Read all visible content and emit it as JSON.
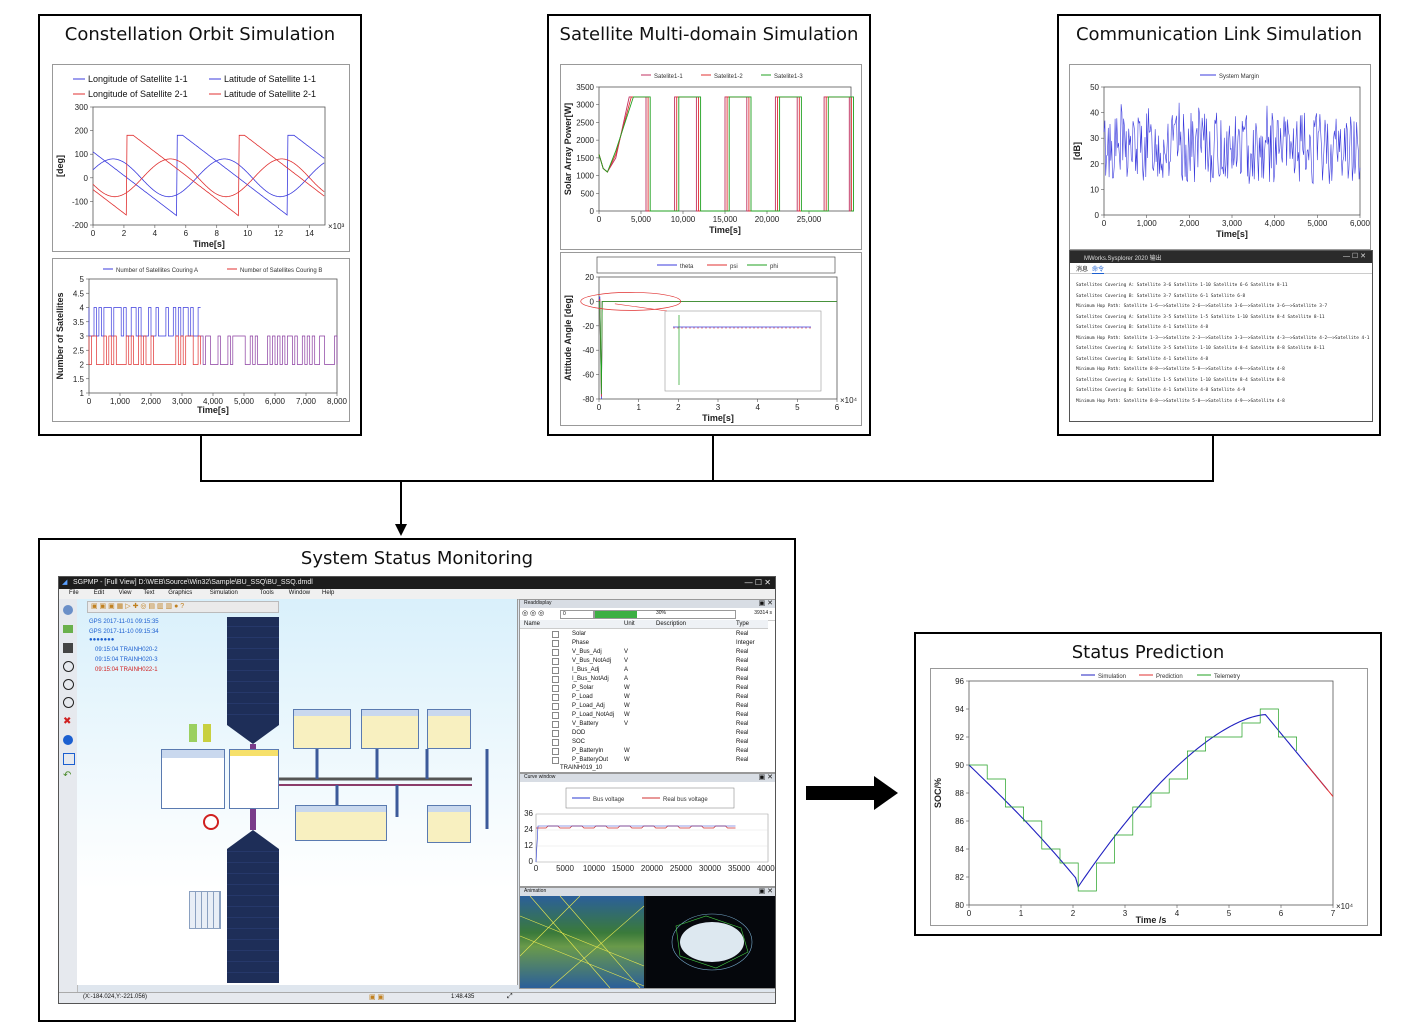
{
  "panels": {
    "orbit": {
      "title": "Constellation Orbit Simulation"
    },
    "multidomain": {
      "title": "Satellite Multi-domain Simulation"
    },
    "comm": {
      "title": "Communication Link Simulation"
    },
    "monitor": {
      "title": "System Status Monitoring"
    },
    "prediction": {
      "title": "Status Prediction"
    }
  },
  "chart_data": [
    {
      "id": "orbit-angles",
      "type": "line",
      "legend": [
        "Longitude of Satellite 1-1",
        "Latitude of Satellite 1-1",
        "Longitude of Satellite 2-1",
        "Latitude of Satellite 2-1"
      ],
      "colors": [
        "#3b3bdd",
        "#3b3bdd",
        "#e03030",
        "#e03030"
      ],
      "ylabel": "[deg]",
      "xlabel": "Time[s]",
      "xscale_note": "×10³",
      "ylim": [
        -200,
        300
      ],
      "yticks": [
        300,
        200,
        100,
        0,
        -100,
        -200
      ],
      "xlim": [
        0,
        15
      ],
      "xticks": [
        0,
        2,
        4,
        6,
        8,
        10,
        12,
        14
      ]
    },
    {
      "id": "coverage",
      "type": "line",
      "legend": [
        "Number of Satellites Couring A",
        "Number of Satellites Couring B"
      ],
      "colors": [
        "#3b3bdd",
        "#e03030"
      ],
      "ylabel": "Number of Satellites",
      "xlabel": "Time[s]",
      "ylim": [
        1,
        5
      ],
      "yticks": [
        5,
        4.5,
        4,
        3.5,
        3,
        2.5,
        2,
        1.5,
        1
      ],
      "xlim": [
        0,
        8000
      ],
      "xticks": [
        "0",
        "1,000",
        "2,000",
        "3,000",
        "4,000",
        "5,000",
        "6,000",
        "7,000",
        "8,000"
      ]
    },
    {
      "id": "solar-power",
      "type": "line",
      "legend": [
        "Satelite1-1",
        "Satelite1-2",
        "Satelite1-3"
      ],
      "colors": [
        "#c03060",
        "#e03030",
        "#20a020"
      ],
      "ylabel": "Solar Array Power[W]",
      "xlabel": "Time[s]",
      "ylim": [
        0,
        3500
      ],
      "yticks": [
        3500,
        3000,
        2500,
        2000,
        1500,
        1000,
        500,
        0
      ],
      "xlim": [
        0,
        30000
      ],
      "xticks": [
        "0",
        "5,000",
        "10,000",
        "15,000",
        "20,000",
        "25,000"
      ]
    },
    {
      "id": "attitude",
      "type": "line",
      "legend": [
        "theta",
        "psi",
        "phi"
      ],
      "colors": [
        "#3b3bdd",
        "#e03030",
        "#20a020"
      ],
      "ylabel": "Attitude Angle [deg]",
      "xlabel": "Time[s]",
      "xscale_note": "×10⁴",
      "ylim": [
        -80,
        20
      ],
      "yticks": [
        20,
        0,
        -20,
        -40,
        -60,
        -80
      ],
      "xlim": [
        0,
        6
      ],
      "xticks": [
        0,
        1,
        2,
        3,
        4,
        5,
        6
      ]
    },
    {
      "id": "system-margin",
      "type": "line",
      "legend": [
        "System Margin"
      ],
      "colors": [
        "#3b3bdd"
      ],
      "ylabel": "[dB]",
      "xlabel": "Time[s]",
      "ylim": [
        0,
        50
      ],
      "yticks": [
        50,
        40,
        30,
        20,
        10,
        0
      ],
      "xlim": [
        0,
        6000
      ],
      "xticks": [
        "0",
        "1,000",
        "2,000",
        "3,000",
        "4,000",
        "5,000",
        "6,000"
      ]
    },
    {
      "id": "soc",
      "type": "line",
      "legend": [
        "Simulation",
        "Prediction",
        "Telemetry"
      ],
      "colors": [
        "#2020c0",
        "#e03030",
        "#20a020"
      ],
      "ylabel": "SOC/%",
      "xlabel": "Time /s",
      "xscale_note": "×10⁴",
      "ylim": [
        80,
        96
      ],
      "yticks": [
        96,
        94,
        92,
        90,
        88,
        86,
        84,
        82,
        80
      ],
      "xlim": [
        0,
        7
      ],
      "xticks": [
        0,
        1,
        2,
        3,
        4,
        5,
        6,
        7
      ]
    }
  ],
  "mworks": {
    "title": "MWorks.Sysplorer 2020 输出",
    "tabs": [
      "消息",
      "命令"
    ],
    "lines": [
      "Satellites Covering A: Satellite 3-6 Satellite 1-10 Satellite 6-6 Satellite 8-11",
      "Satellites Covering B: Satellite 3-7 Satellite 6-1 Satellite 6-8",
      "Minimum Hop Path:  Satellite 1-6——>Satellite 2-6——>Satellite 3-6——>Satellite 3-6——>Satellite 3-7",
      "Satellites Covering A: Satellite 3-5 Satellite 1-5 Satellite 1-10 Satellite 8-4 Satellite 8-11",
      "Satellites Covering B: Satellite 4-1 Satellite 4-8",
      "Minimum Hop Path:  Satellite 1-3——>Satellite 2-3——>Satellite 3-3——>Satellite 4-3——>Satellite 4-2——>Satellite 4-1",
      "Satellites Covering A: Satellite 3-5 Satellite 1-10 Satellite 8-4 Satellite 8-8 Satellite 8-11",
      "Satellites Covering B: Satellite 4-1 Satellite 4-8",
      "Minimum Hop Path:  Satellite 8-8——>Satellite 5-8——>Satellite 4-9——>Satellite 4-8",
      "Satellites Covering A: Satellite 1-5 Satellite 1-10 Satellite 8-4 Satellite 8-8",
      "Satellites Covering B: Satellite 4-1 Satellite 4-8 Satellite 4-9",
      "Minimum Hop Path:  Satellite 8-8——>Satellite 5-8——>Satellite 4-9——>Satellite 4-8"
    ]
  },
  "sgpmp": {
    "title": "SGPMP - [Full View]  D:\\WEB\\Source\\Win32\\Sample\\BU_SSQ\\BU_SSQ.dmdl",
    "menu": [
      "File",
      "Edit",
      "View",
      "Text",
      "Graphics",
      "Simulation",
      "Tools",
      "Window",
      "Help"
    ],
    "times": [
      {
        "label": "GPS",
        "value": "2017-11-01   09:15:35"
      },
      {
        "label": "GPS",
        "value": "2017-11-10   09:15:34"
      }
    ],
    "events": [
      {
        "text": "09:15:04  TRAINH020-2",
        "color": "#1b5fd0"
      },
      {
        "text": "09:15:04  TRAINH020-3",
        "color": "#1b5fd0"
      },
      {
        "text": "09:15:04  TRAINH022-1",
        "color": "#d02020"
      }
    ],
    "readback": {
      "title": "Readdisplay",
      "step_value": "0",
      "progress_text": "30%",
      "progress_fraction": 0.3,
      "time_value": "39314 s",
      "columns": [
        "Name",
        "Unit",
        "Description",
        "Type"
      ],
      "rows": [
        [
          "Solar",
          "",
          "",
          "Real"
        ],
        [
          "Phase",
          "",
          "",
          "Integer"
        ],
        [
          "V_Bus_Adj",
          "V",
          "",
          "Real"
        ],
        [
          "V_Bus_NotAdj",
          "V",
          "",
          "Real"
        ],
        [
          "I_Bus_Adj",
          "A",
          "",
          "Real"
        ],
        [
          "I_Bus_NotAdj",
          "A",
          "",
          "Real"
        ],
        [
          "P_Solar",
          "W",
          "",
          "Real"
        ],
        [
          "P_Load",
          "W",
          "",
          "Real"
        ],
        [
          "P_Load_Adj",
          "W",
          "",
          "Real"
        ],
        [
          "P_Load_NotAdj",
          "W",
          "",
          "Real"
        ],
        [
          "V_Battery",
          "V",
          "",
          "Real"
        ],
        [
          "DOD",
          "",
          "",
          "Real"
        ],
        [
          "SOC",
          "",
          "",
          "Real"
        ],
        [
          "P_BatteryIn",
          "W",
          "",
          "Real"
        ],
        [
          "P_BatteryOut",
          "W",
          "",
          "Real"
        ]
      ],
      "footer_item": "TRAINH019_10"
    },
    "curve": {
      "title": "Curve window",
      "legend": [
        "Bus voltage",
        "Real bus voltage"
      ],
      "yticks": [
        "36",
        "24",
        "12",
        "0"
      ],
      "xticks": [
        "0",
        "5000",
        "10000",
        "15000",
        "20000",
        "25000",
        "30000",
        "35000",
        "40000"
      ]
    },
    "animation": {
      "title": "Animation"
    },
    "status": {
      "coords": "(X:-184.024,Y:-221.056)",
      "time": "1:48.435"
    }
  }
}
